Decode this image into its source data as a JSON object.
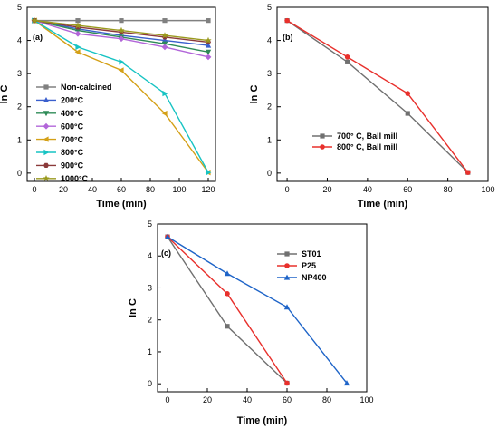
{
  "chart_data": [
    {
      "type": "line",
      "panel_label": "(a)",
      "xlabel": "Time (min)",
      "ylabel": "ln C",
      "xlim": [
        -5,
        125
      ],
      "ylim": [
        -0.25,
        5
      ],
      "xticks": [
        0,
        20,
        40,
        60,
        80,
        100,
        120
      ],
      "yticks": [
        0,
        1,
        2,
        3,
        4,
        5
      ],
      "legend_position": "left",
      "x": [
        0,
        30,
        60,
        90,
        120
      ],
      "series": [
        {
          "name": "Non-calcined",
          "color": "#808080",
          "marker": "square",
          "values": [
            4.6,
            4.6,
            4.6,
            4.6,
            4.6
          ]
        },
        {
          "name": "200°C",
          "color": "#3a5fcd",
          "marker": "triangle-up",
          "values": [
            4.6,
            4.35,
            4.15,
            4.0,
            3.85
          ]
        },
        {
          "name": "400°C",
          "color": "#2e8b57",
          "marker": "triangle-down",
          "values": [
            4.6,
            4.3,
            4.1,
            3.9,
            3.65
          ]
        },
        {
          "name": "600°C",
          "color": "#b266d9",
          "marker": "diamond",
          "values": [
            4.6,
            4.2,
            4.05,
            3.8,
            3.5
          ]
        },
        {
          "name": "700°C",
          "color": "#d4a017",
          "marker": "triangle-left",
          "values": [
            4.6,
            3.65,
            3.1,
            1.8,
            0.02
          ]
        },
        {
          "name": "800°C",
          "color": "#17c3c3",
          "marker": "triangle-right",
          "values": [
            4.6,
            3.8,
            3.35,
            2.4,
            0.02
          ]
        },
        {
          "name": "900°C",
          "color": "#8b3a3a",
          "marker": "hexagon",
          "values": [
            4.6,
            4.4,
            4.25,
            4.1,
            3.95
          ]
        },
        {
          "name": "1000°C",
          "color": "#9a9a1e",
          "marker": "star",
          "values": [
            4.6,
            4.45,
            4.3,
            4.15,
            4.0
          ]
        }
      ]
    },
    {
      "type": "line",
      "panel_label": "(b)",
      "xlabel": "Time (min)",
      "ylabel": "ln C",
      "xlim": [
        -5,
        100
      ],
      "ylim": [
        -0.25,
        5
      ],
      "xticks": [
        0,
        20,
        40,
        60,
        80,
        100
      ],
      "yticks": [
        0,
        1,
        2,
        3,
        4,
        5
      ],
      "legend_position": "center",
      "x": [
        0,
        30,
        60,
        90
      ],
      "series": [
        {
          "name": "700° C, Ball mill",
          "color": "#707070",
          "marker": "square",
          "values": [
            4.6,
            3.35,
            1.8,
            0.02
          ]
        },
        {
          "name": "800° C, Ball mill",
          "color": "#e8302c",
          "marker": "circle",
          "values": [
            4.6,
            3.5,
            2.4,
            0.02
          ]
        }
      ]
    },
    {
      "type": "line",
      "panel_label": "(c)",
      "xlabel": "Time (min)",
      "ylabel": "ln C",
      "xlim": [
        -5,
        100
      ],
      "ylim": [
        -0.25,
        5
      ],
      "xticks": [
        0,
        20,
        40,
        60,
        80,
        100
      ],
      "yticks": [
        0,
        1,
        2,
        3,
        4,
        5
      ],
      "legend_position": "top-right",
      "series": [
        {
          "name": "ST01",
          "color": "#707070",
          "marker": "square",
          "x": [
            0,
            30,
            60
          ],
          "values": [
            4.6,
            1.8,
            0.02
          ]
        },
        {
          "name": "P25",
          "color": "#e8302c",
          "marker": "circle",
          "x": [
            0,
            30,
            60
          ],
          "values": [
            4.6,
            2.82,
            0.02
          ]
        },
        {
          "name": "NP400",
          "color": "#1e64c8",
          "marker": "triangle-up",
          "x": [
            0,
            30,
            60,
            90
          ],
          "values": [
            4.6,
            3.45,
            2.4,
            0.02
          ]
        }
      ]
    }
  ]
}
